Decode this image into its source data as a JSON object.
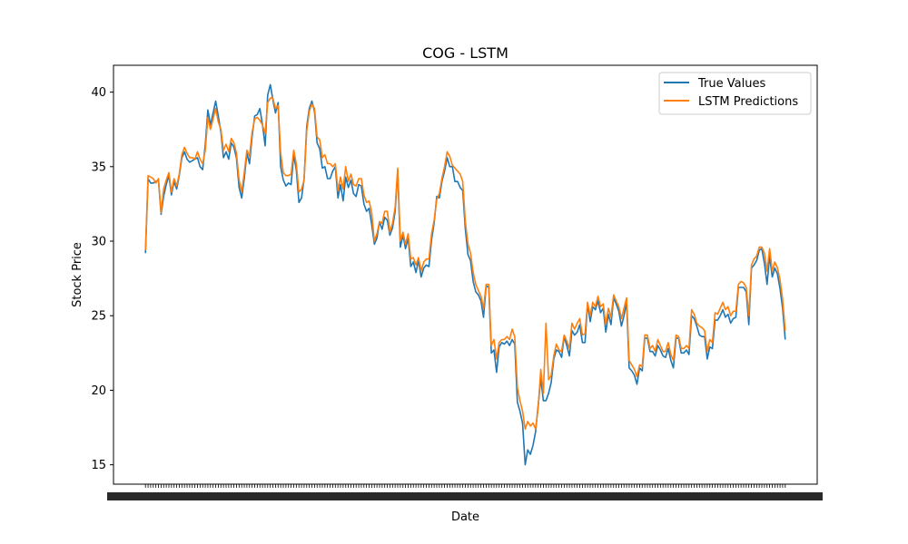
{
  "chart_data": {
    "type": "line",
    "title": "COG - LSTM",
    "xlabel": "Date",
    "ylabel": "Stock Price",
    "ylim": [
      13.7,
      41.8
    ],
    "yticks": [
      15,
      20,
      25,
      30,
      35,
      40
    ],
    "grid": false,
    "legend_position": "top-right",
    "x_tick_labels_note": "dense overlapping date labels (unreadable)",
    "series": [
      {
        "name": "True Values",
        "color": "#1f77b4",
        "values": [
          29.2,
          34.2,
          33.9,
          33.9,
          34.0,
          34.1,
          31.8,
          33.0,
          33.8,
          34.4,
          33.1,
          34.0,
          33.5,
          34.4,
          35.6,
          36.0,
          35.5,
          35.3,
          35.4,
          35.5,
          35.6,
          35.0,
          34.8,
          36.5,
          38.8,
          37.8,
          38.6,
          39.4,
          38.4,
          37.3,
          35.6,
          36.0,
          35.5,
          36.6,
          36.3,
          35.6,
          33.6,
          32.9,
          34.2,
          35.9,
          35.2,
          37.0,
          38.4,
          38.5,
          38.9,
          37.8,
          36.4,
          39.8,
          40.5,
          39.5,
          38.6,
          39.3,
          35.0,
          34.1,
          33.7,
          33.9,
          33.8,
          35.8,
          34.8,
          32.6,
          32.9,
          34.2,
          37.7,
          38.9,
          39.4,
          38.7,
          36.6,
          36.2,
          34.9,
          35.0,
          34.2,
          34.2,
          34.7,
          35.0,
          32.9,
          33.8,
          32.7,
          34.3,
          33.6,
          34.1,
          33.2,
          33.0,
          33.8,
          33.7,
          32.5,
          32.0,
          32.2,
          31.1,
          29.8,
          30.2,
          31.3,
          30.8,
          31.6,
          31.4,
          30.4,
          30.9,
          32.0,
          34.7,
          29.6,
          30.4,
          29.5,
          30.2,
          28.3,
          28.6,
          27.9,
          28.7,
          27.6,
          28.2,
          28.4,
          28.3,
          30.1,
          31.2,
          33.0,
          32.9,
          34.0,
          34.7,
          35.6,
          35.0,
          35.0,
          34.0,
          34.0,
          33.6,
          33.4,
          30.8,
          29.1,
          28.7,
          27.3,
          26.6,
          26.4,
          26.0,
          24.9,
          27.0,
          26.9,
          22.5,
          22.7,
          21.2,
          22.9,
          23.2,
          23.1,
          23.3,
          23.0,
          23.4,
          23.1,
          19.2,
          18.6,
          17.8,
          15.0,
          16.0,
          15.7,
          16.3,
          17.2,
          19.0,
          20.8,
          19.3,
          19.3,
          19.8,
          20.5,
          22.1,
          22.7,
          22.6,
          22.2,
          23.6,
          23.0,
          22.3,
          24.0,
          23.7,
          23.9,
          24.4,
          23.2,
          23.2,
          25.8,
          24.6,
          25.6,
          25.4,
          26.0,
          25.2,
          25.5,
          23.9,
          25.1,
          24.4,
          26.2,
          25.8,
          25.3,
          24.3,
          25.0,
          25.9,
          21.5,
          21.3,
          21.0,
          20.4,
          21.5,
          21.3,
          23.5,
          23.5,
          22.6,
          22.6,
          22.3,
          23.0,
          22.7,
          22.3,
          22.2,
          22.8,
          22.0,
          21.5,
          23.5,
          23.5,
          22.5,
          22.5,
          22.7,
          22.4,
          25.0,
          24.8,
          24.3,
          23.7,
          23.6,
          23.6,
          22.1,
          22.9,
          22.8,
          24.7,
          24.7,
          25.0,
          25.4,
          24.9,
          25.1,
          24.5,
          24.8,
          24.9,
          26.9,
          26.9,
          26.9,
          26.6,
          24.4,
          28.2,
          28.4,
          28.7,
          29.4,
          29.5,
          28.5,
          27.1,
          29.0,
          27.6,
          28.2,
          27.8,
          26.8,
          25.5,
          23.4
        ]
      },
      {
        "name": "LSTM Predictions",
        "color": "#ff7f0e",
        "values": [
          29.4,
          34.4,
          34.3,
          34.2,
          33.9,
          34.2,
          31.9,
          33.5,
          34.1,
          34.6,
          33.3,
          34.2,
          33.7,
          34.5,
          35.8,
          36.3,
          35.9,
          35.6,
          35.6,
          35.5,
          36.0,
          35.5,
          35.2,
          36.1,
          38.3,
          37.5,
          38.2,
          38.9,
          38.0,
          37.5,
          36.1,
          36.5,
          36.0,
          36.9,
          36.6,
          35.9,
          34.1,
          33.3,
          34.6,
          36.1,
          35.7,
          37.3,
          38.2,
          38.3,
          38.1,
          37.8,
          37.2,
          39.3,
          39.6,
          39.6,
          38.9,
          39.1,
          35.9,
          34.6,
          34.4,
          34.4,
          34.5,
          36.1,
          35.2,
          33.3,
          33.5,
          34.1,
          37.4,
          38.7,
          39.2,
          38.9,
          37.0,
          36.8,
          35.6,
          35.8,
          35.2,
          35.2,
          35.0,
          35.2,
          33.4,
          34.3,
          33.5,
          35.0,
          34.0,
          34.5,
          33.8,
          33.7,
          34.2,
          34.2,
          33.1,
          32.6,
          32.7,
          31.9,
          30.0,
          30.5,
          31.3,
          31.2,
          32.0,
          32.0,
          30.6,
          31.2,
          32.3,
          34.9,
          30.0,
          30.6,
          29.8,
          30.5,
          28.8,
          28.9,
          28.4,
          28.9,
          28.0,
          28.6,
          28.8,
          28.8,
          30.5,
          31.4,
          32.8,
          33.2,
          34.2,
          35.0,
          36.0,
          35.7,
          35.1,
          34.9,
          34.7,
          34.5,
          34.0,
          31.3,
          29.8,
          29.2,
          27.9,
          27.1,
          26.7,
          26.3,
          25.5,
          27.1,
          27.1,
          23.0,
          23.4,
          22.1,
          23.2,
          23.4,
          23.4,
          23.6,
          23.4,
          24.1,
          23.6,
          20.2,
          19.3,
          18.6,
          17.4,
          17.9,
          17.6,
          17.8,
          17.4,
          18.8,
          21.4,
          19.8,
          24.5,
          20.7,
          21.0,
          22.3,
          23.1,
          22.7,
          22.6,
          23.7,
          23.3,
          22.8,
          24.5,
          24.1,
          24.5,
          24.8,
          23.7,
          23.8,
          25.9,
          25.0,
          25.9,
          25.6,
          26.3,
          25.6,
          25.8,
          24.4,
          25.5,
          24.9,
          26.4,
          26.0,
          25.6,
          24.8,
          25.5,
          26.2,
          22.0,
          21.7,
          21.4,
          20.9,
          21.7,
          21.6,
          23.7,
          23.7,
          22.8,
          23.0,
          22.6,
          23.4,
          23.0,
          22.6,
          22.6,
          23.2,
          22.4,
          22.0,
          23.7,
          23.6,
          22.8,
          22.8,
          23.0,
          22.8,
          25.4,
          25.1,
          24.5,
          24.3,
          24.2,
          24.0,
          22.6,
          23.4,
          23.2,
          25.2,
          25.1,
          25.5,
          25.9,
          25.4,
          25.6,
          25.0,
          25.3,
          25.3,
          27.1,
          27.3,
          27.2,
          26.9,
          25.0,
          28.4,
          28.8,
          29.0,
          29.6,
          29.6,
          29.2,
          28.0,
          29.5,
          28.0,
          28.6,
          28.2,
          27.4,
          26.1,
          24.0
        ]
      }
    ]
  }
}
